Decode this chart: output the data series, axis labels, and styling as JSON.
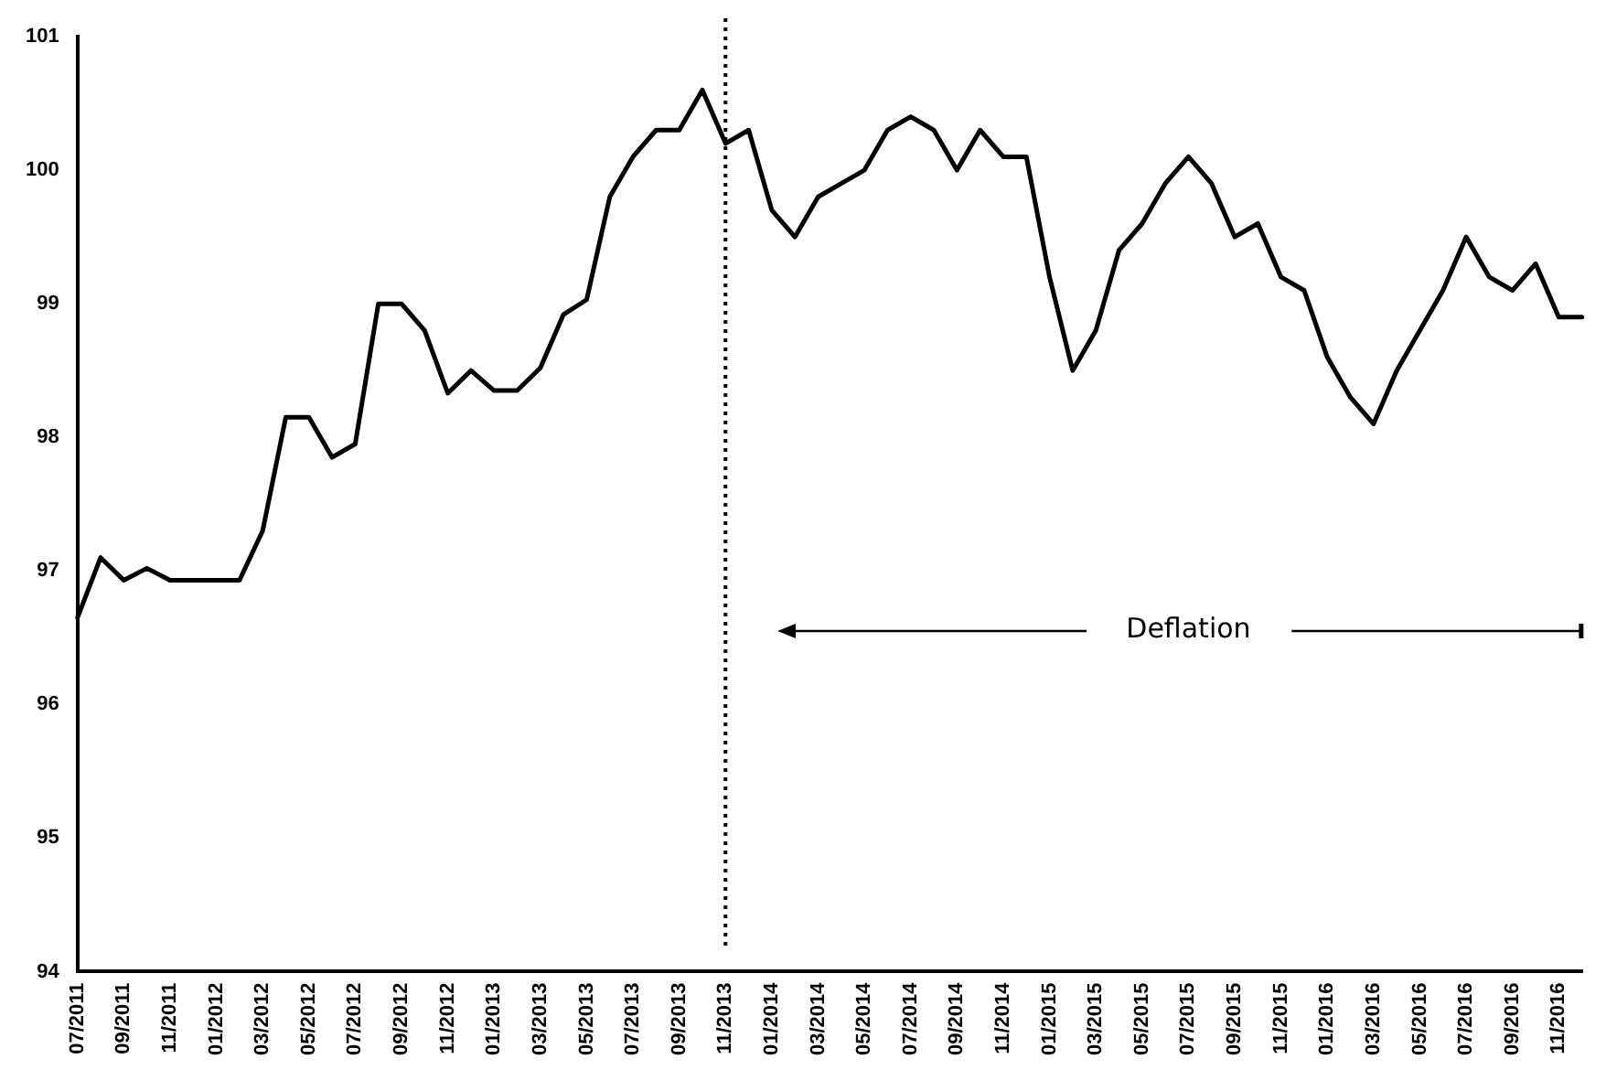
{
  "chart_data": {
    "type": "line",
    "categories": [
      "07/2011",
      null,
      "09/2011",
      null,
      "11/2011",
      null,
      "01/2012",
      null,
      "03/2012",
      null,
      "05/2012",
      null,
      "07/2012",
      null,
      "09/2012",
      null,
      "11/2012",
      null,
      "01/2013",
      null,
      "03/2013",
      null,
      "05/2013",
      null,
      "07/2013",
      null,
      "09/2013",
      null,
      "11/2013",
      null,
      "01/2014",
      null,
      "03/2014",
      null,
      "05/2014",
      null,
      "07/2014",
      null,
      "09/2014",
      null,
      "11/2014",
      null,
      "01/2015",
      null,
      "03/2015",
      null,
      "05/2015",
      null,
      "07/2015",
      null,
      "09/2015",
      null,
      "11/2015",
      null,
      "01/2016",
      null,
      "03/2016",
      null,
      "05/2016",
      null,
      "07/2016",
      null,
      "09/2016",
      null,
      "11/2016",
      null
    ],
    "series": [
      {
        "color": "#000000",
        "values": [
          96.65,
          97.1,
          96.93,
          97.02,
          96.93,
          96.93,
          96.93,
          96.93,
          97.3,
          98.15,
          98.15,
          97.85,
          97.95,
          99.0,
          99.0,
          98.8,
          98.33,
          98.5,
          98.35,
          98.35,
          98.52,
          98.92,
          99.03,
          99.8,
          100.1,
          100.3,
          100.3,
          100.6,
          100.2,
          100.3,
          99.7,
          99.5,
          99.8,
          99.9,
          100.0,
          100.3,
          100.4,
          100.3,
          100.0,
          100.3,
          100.1,
          100.1,
          99.2,
          98.5,
          98.8,
          99.4,
          99.6,
          99.9,
          100.1,
          99.9,
          99.5,
          99.6,
          99.2,
          99.1,
          98.6,
          98.3,
          98.1,
          98.5,
          98.8,
          99.1,
          99.5,
          99.2,
          99.1,
          99.3,
          98.9,
          98.9
        ]
      }
    ],
    "ylim": [
      94,
      101
    ],
    "yticks": [
      94,
      95,
      96,
      97,
      98,
      99,
      100,
      101
    ],
    "grid": false,
    "legend": false,
    "marker": "none",
    "line_style": "solid",
    "ref_lines": [
      {
        "axis": "x",
        "value": "11/2013",
        "line_style": "dotted",
        "color": "#000000"
      }
    ],
    "annotations": [
      "Deflation"
    ]
  }
}
